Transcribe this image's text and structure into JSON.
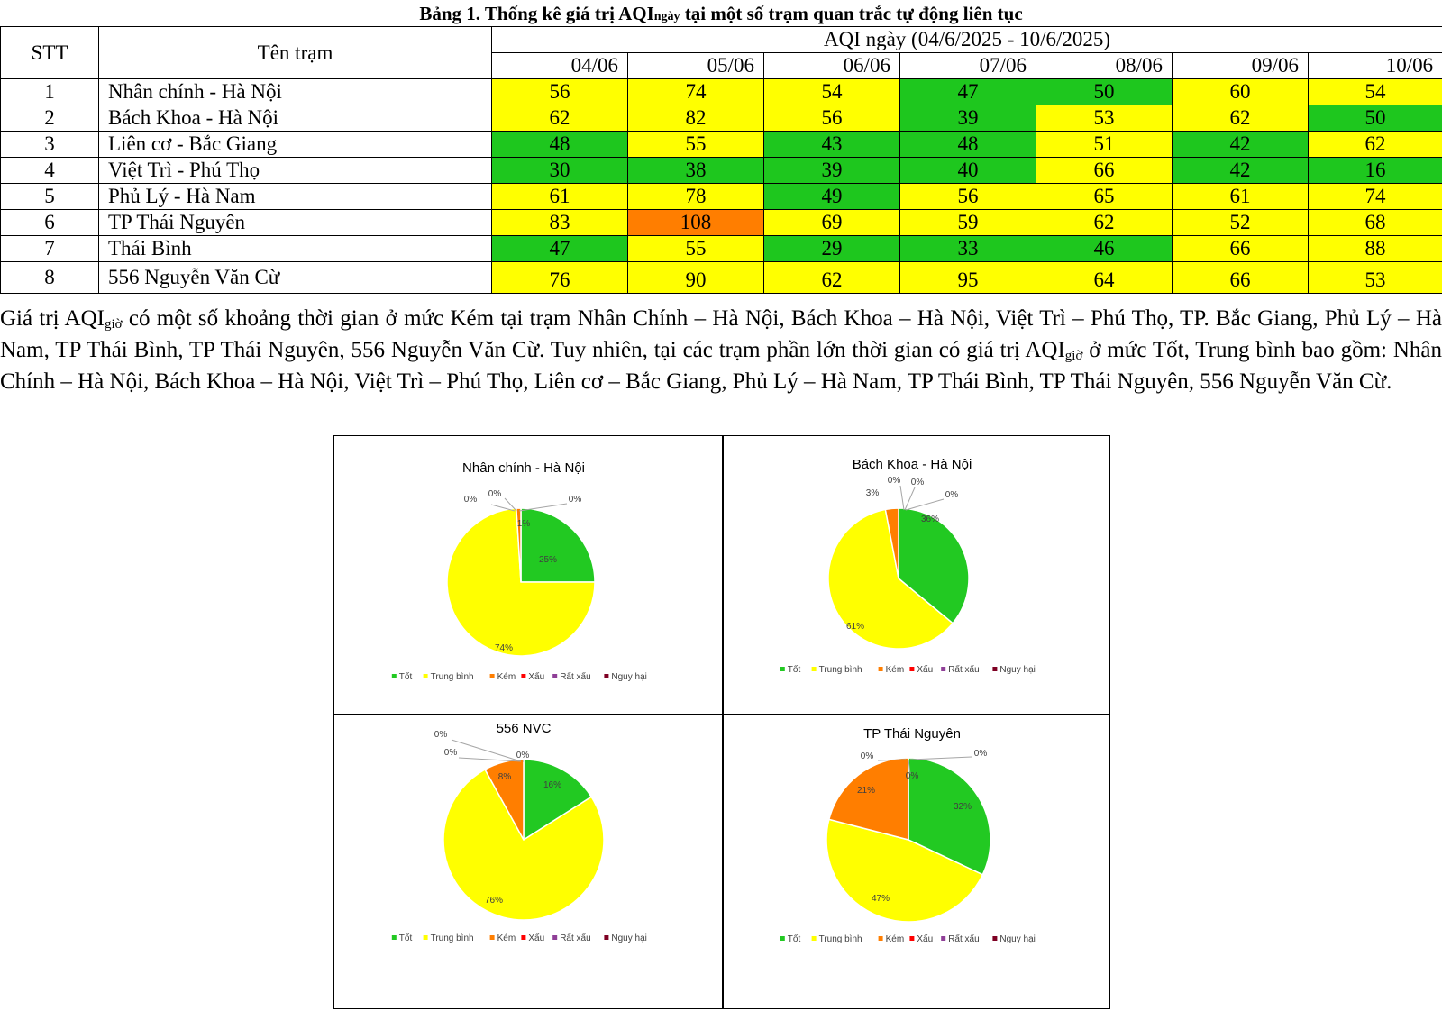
{
  "caption": {
    "prefix": "Bảng 1. Thống kê giá trị AQI",
    "sub": "ngày",
    "suffix": " tại một số trạm quan trắc tự động liên tục"
  },
  "table": {
    "col_stt": "STT",
    "col_name": "Tên trạm",
    "range_header": "AQI ngày (04/6/2025 - 10/6/2025)",
    "dates": [
      "04/06",
      "05/06",
      "06/06",
      "07/06",
      "08/06",
      "09/06",
      "10/06"
    ],
    "rows": [
      {
        "stt": "1",
        "name": "Nhân chính - Hà Nội",
        "values": [
          56,
          74,
          54,
          47,
          50,
          60,
          54
        ]
      },
      {
        "stt": "2",
        "name": "Bách Khoa - Hà Nội",
        "values": [
          62,
          82,
          56,
          39,
          53,
          62,
          50
        ]
      },
      {
        "stt": "3",
        "name": "Liên cơ - Bắc Giang",
        "values": [
          48,
          55,
          43,
          48,
          51,
          42,
          62
        ]
      },
      {
        "stt": "4",
        "name": "Việt Trì - Phú Thọ",
        "values": [
          30,
          38,
          39,
          40,
          66,
          42,
          16
        ]
      },
      {
        "stt": "5",
        "name": "Phủ Lý - Hà Nam",
        "values": [
          61,
          78,
          49,
          56,
          65,
          61,
          74
        ]
      },
      {
        "stt": "6",
        "name": "TP Thái Nguyên",
        "values": [
          83,
          108,
          69,
          59,
          62,
          52,
          68
        ]
      },
      {
        "stt": "7",
        "name": "Thái Bình",
        "values": [
          47,
          55,
          29,
          33,
          46,
          66,
          88
        ]
      },
      {
        "stt": "8",
        "name": "556 Nguyễn Văn Cừ",
        "values": [
          76,
          90,
          62,
          95,
          64,
          66,
          53
        ]
      }
    ],
    "colors": {
      "good": "#1ec71e",
      "moderate": "#ffff00",
      "poor": "#ff7e00"
    }
  },
  "paragraph": {
    "p1": "Giá trị AQI",
    "sub1": "giờ",
    "p2": " có một số khoảng thời gian ở mức Kém tại trạm Nhân Chính – Hà Nội, Bách Khoa – Hà Nội, Việt Trì – Phú Thọ, TP. Bắc Giang, Phủ Lý – Hà Nam, TP Thái Bình, TP Thái Nguyên, 556 Nguyễn Văn Cừ. Tuy nhiên, tại các trạm phần lớn thời gian có giá trị AQI",
    "sub2": "giờ",
    "p3": " ở mức Tốt, Trung bình bao gồm: Nhân Chính – Hà Nội, Bách Khoa – Hà Nội, Việt Trì – Phú Thọ, Liên cơ – Bắc Giang, Phủ Lý – Hà Nam, TP Thái Bình, TP Thái Nguyên, 556 Nguyễn Văn Cừ."
  },
  "chart_data": [
    {
      "type": "pie",
      "title": "Nhân chính - Hà Nội",
      "categories": [
        "Tốt",
        "Trung bình",
        "Kém",
        "Xấu",
        "Rất xấu",
        "Nguy hại"
      ],
      "values": [
        25,
        74,
        1,
        0,
        0,
        0
      ],
      "labels": [
        "25%",
        "74%",
        "1%",
        "0%",
        "0%",
        "0%"
      ],
      "legend": "bottom"
    },
    {
      "type": "pie",
      "title": "Bách Khoa - Hà Nội",
      "categories": [
        "Tốt",
        "Trung bình",
        "Kém",
        "Xấu",
        "Rất xấu",
        "Nguy hại"
      ],
      "values": [
        36,
        61,
        3,
        0,
        0,
        0
      ],
      "labels": [
        "36%",
        "61%",
        "3%",
        "0%",
        "0%",
        "0%"
      ],
      "legend": "bottom"
    },
    {
      "type": "pie",
      "title": "556 NVC",
      "categories": [
        "Tốt",
        "Trung bình",
        "Kém",
        "Xấu",
        "Rất xấu",
        "Nguy hại"
      ],
      "values": [
        16,
        76,
        8,
        0,
        0,
        0
      ],
      "labels": [
        "16%",
        "76%",
        "8%",
        "0%",
        "0%",
        "0%"
      ],
      "legend": "bottom"
    },
    {
      "type": "pie",
      "title": "TP Thái Nguyên",
      "categories": [
        "Tốt",
        "Trung bình",
        "Kém",
        "Xấu",
        "Rất xấu",
        "Nguy hại"
      ],
      "values": [
        32,
        47,
        21,
        0,
        0,
        0
      ],
      "labels": [
        "32%",
        "47%",
        "21%",
        "0%",
        "0%",
        "0%"
      ],
      "legend": "bottom"
    }
  ],
  "pie_colors": [
    "#22c922",
    "#ffff00",
    "#ff7e00",
    "#ff0000",
    "#8f3f97",
    "#7e0023"
  ]
}
